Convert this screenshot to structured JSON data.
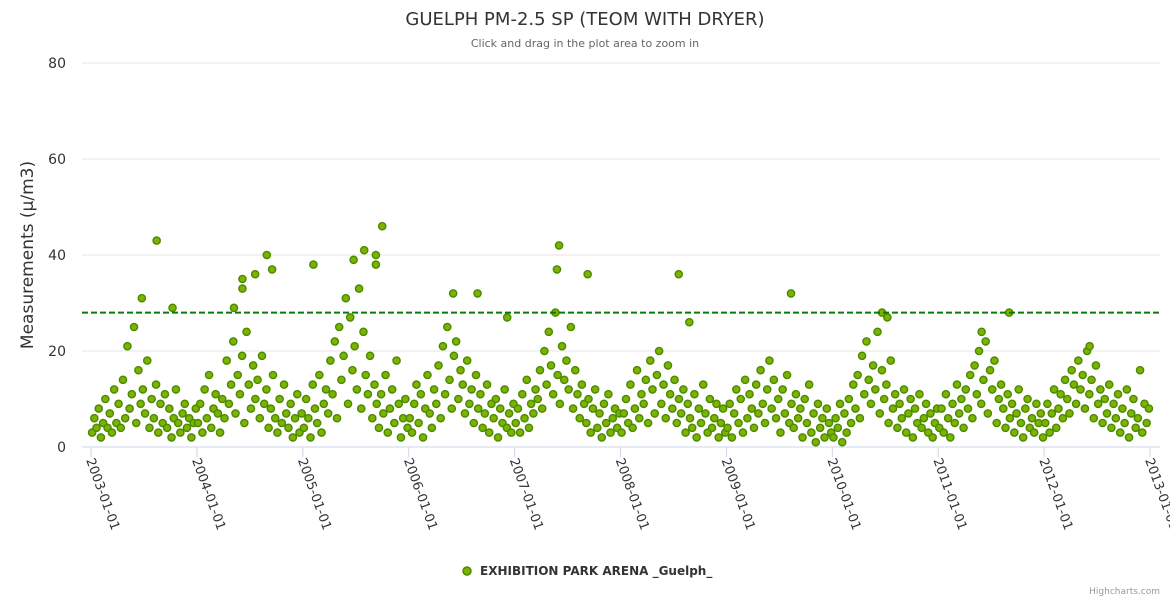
{
  "chart_data": {
    "type": "scatter",
    "title": "GUELPH PM-2.5 SP (TEOM WITH DRYER)",
    "subtitle": "Click and drag in the plot area to zoom in",
    "xlabel": "",
    "ylabel": "Measurements (μ/m3)",
    "ylim": [
      0,
      80
    ],
    "xlim": [
      2002.92,
      2013.0
    ],
    "yticks": [
      "0",
      "20",
      "40",
      "60",
      "80"
    ],
    "xticks": [
      "2003-01-01",
      "2004-01-01",
      "2005-01-01",
      "2006-01-01",
      "2007-01-01",
      "2008-01-01",
      "2009-01-01",
      "2010-01-01",
      "2011-01-01",
      "2012-01-01",
      "2013-01-01"
    ],
    "grid": true,
    "legend_placement": "bottom-center",
    "reference_line": {
      "value": 28,
      "style": "dashed",
      "color": "#0a7a0a"
    },
    "series": [
      {
        "name": "EXHIBITION PARK ARENA _Guelph_",
        "color": "#7cb300",
        "stroke": "#4b8a00",
        "x_unit": "decimal year",
        "base_by_year": {
          "2003": [
            3,
            6,
            4,
            8,
            2,
            5,
            10,
            4,
            7,
            3,
            12,
            5,
            9,
            4,
            14,
            6,
            21,
            8,
            11,
            25,
            5,
            16,
            9,
            12,
            7,
            18,
            4,
            10,
            6,
            13,
            3,
            9,
            5,
            11,
            4,
            8,
            2,
            6,
            12,
            5,
            3,
            7,
            9,
            4,
            6,
            2,
            5,
            8
          ],
          "2004": [
            5,
            9,
            3,
            12,
            6,
            15,
            4,
            8,
            11,
            7,
            3,
            10,
            6,
            18,
            9,
            13,
            22,
            7,
            15,
            11,
            19,
            5,
            24,
            13,
            8,
            17,
            10,
            14,
            6,
            19,
            9,
            12,
            4,
            8,
            15,
            6,
            3,
            10,
            5,
            13,
            7,
            4,
            9,
            2,
            6,
            11,
            3,
            7
          ],
          "2005": [
            4,
            10,
            6,
            2,
            13,
            8,
            5,
            15,
            3,
            9,
            12,
            7,
            18,
            11,
            22,
            6,
            25,
            14,
            19,
            31,
            9,
            27,
            16,
            21,
            12,
            33,
            8,
            24,
            15,
            11,
            19,
            6,
            13,
            9,
            4,
            11,
            7,
            15,
            3,
            8,
            12,
            5,
            18,
            9,
            2,
            6,
            10,
            4
          ],
          "2006": [
            6,
            3,
            9,
            13,
            5,
            11,
            2,
            8,
            15,
            7,
            4,
            12,
            9,
            17,
            6,
            21,
            11,
            25,
            14,
            8,
            19,
            22,
            10,
            16,
            13,
            7,
            18,
            9,
            12,
            5,
            15,
            8,
            11,
            4,
            7,
            13,
            3,
            9,
            6,
            10,
            2,
            8,
            5,
            12,
            4,
            7,
            3,
            9
          ],
          "2007": [
            5,
            8,
            3,
            11,
            6,
            14,
            4,
            9,
            7,
            12,
            10,
            16,
            8,
            20,
            13,
            24,
            17,
            11,
            28,
            15,
            9,
            21,
            14,
            18,
            12,
            25,
            8,
            16,
            11,
            6,
            13,
            9,
            5,
            10,
            3,
            8,
            12,
            4,
            7,
            2,
            9,
            5,
            11,
            3,
            6,
            8,
            4,
            7
          ],
          "2008": [
            3,
            7,
            10,
            5,
            13,
            4,
            8,
            16,
            6,
            11,
            9,
            14,
            5,
            18,
            12,
            7,
            15,
            20,
            9,
            13,
            6,
            17,
            11,
            8,
            14,
            5,
            10,
            7,
            12,
            3,
            9,
            6,
            4,
            11,
            2,
            8,
            5,
            13,
            7,
            3,
            10,
            4,
            6,
            9,
            2,
            5,
            8,
            3
          ],
          "2009": [
            4,
            9,
            2,
            7,
            12,
            5,
            10,
            3,
            14,
            6,
            11,
            8,
            4,
            13,
            7,
            16,
            9,
            5,
            12,
            18,
            8,
            14,
            6,
            10,
            3,
            12,
            7,
            15,
            5,
            9,
            4,
            11,
            6,
            8,
            2,
            10,
            5,
            13,
            3,
            7,
            1,
            9,
            4,
            6,
            2,
            8,
            5,
            3
          ],
          "2010": [
            2,
            6,
            4,
            9,
            1,
            7,
            3,
            10,
            5,
            13,
            8,
            15,
            6,
            19,
            11,
            22,
            14,
            9,
            17,
            12,
            24,
            7,
            16,
            10,
            13,
            5,
            18,
            8,
            11,
            4,
            9,
            6,
            12,
            3,
            7,
            10,
            2,
            8,
            5,
            11,
            4,
            6,
            9,
            3,
            7,
            2,
            5,
            8
          ],
          "2011": [
            4,
            8,
            3,
            11,
            6,
            2,
            9,
            5,
            13,
            7,
            10,
            4,
            12,
            8,
            15,
            6,
            17,
            11,
            20,
            9,
            14,
            22,
            7,
            16,
            12,
            18,
            5,
            10,
            13,
            8,
            4,
            11,
            6,
            9,
            3,
            7,
            12,
            5,
            2,
            8,
            10,
            4,
            6,
            3,
            9,
            5,
            7,
            2
          ],
          "2012": [
            5,
            9,
            3,
            7,
            12,
            4,
            8,
            11,
            6,
            14,
            10,
            7,
            16,
            13,
            9,
            18,
            12,
            15,
            8,
            20,
            11,
            14,
            6,
            17,
            9,
            12,
            5,
            10,
            7,
            13,
            4,
            9,
            6,
            11,
            3,
            8,
            5,
            12,
            2,
            7,
            10,
            4,
            6,
            16,
            3,
            9,
            5,
            8
          ]
        },
        "peaks": [
          [
            2003.48,
            31
          ],
          [
            2003.62,
            43
          ],
          [
            2003.77,
            29
          ],
          [
            2004.35,
            29
          ],
          [
            2004.43,
            35
          ],
          [
            2004.43,
            33
          ],
          [
            2004.55,
            36
          ],
          [
            2004.66,
            40
          ],
          [
            2004.71,
            37
          ],
          [
            2005.1,
            38
          ],
          [
            2005.48,
            39
          ],
          [
            2005.58,
            41
          ],
          [
            2005.69,
            40
          ],
          [
            2005.69,
            38
          ],
          [
            2005.75,
            46
          ],
          [
            2006.42,
            32
          ],
          [
            2006.65,
            32
          ],
          [
            2006.93,
            27
          ],
          [
            2007.42,
            42
          ],
          [
            2007.4,
            37
          ],
          [
            2007.69,
            36
          ],
          [
            2008.55,
            36
          ],
          [
            2008.65,
            26
          ],
          [
            2009.61,
            32
          ],
          [
            2010.47,
            28
          ],
          [
            2010.52,
            27
          ],
          [
            2011.41,
            24
          ],
          [
            2011.67,
            28
          ],
          [
            2012.43,
            21
          ]
        ]
      }
    ]
  },
  "credits": "Highcharts.com"
}
